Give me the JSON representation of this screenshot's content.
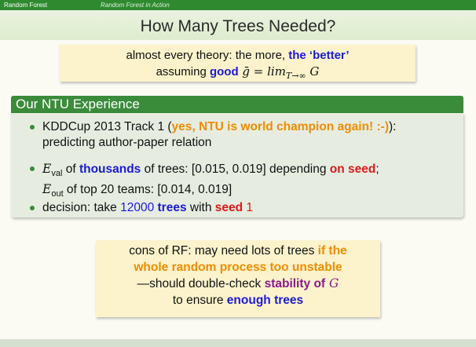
{
  "header": {
    "section": "Random Forest",
    "subsection": "Random Forest in Action"
  },
  "slide": {
    "title": "How Many Trees Needed?"
  },
  "intro_box": {
    "line1_prefix": "almost every theory: the more, ",
    "line1_emph": "the ‘better’",
    "line2_prefix": "assuming ",
    "line2_emph": "good",
    "line2_formula_a": " ḡ = lim",
    "line2_formula_sub": "T→∞",
    "line2_formula_b": " G"
  },
  "experience": {
    "heading": "Our NTU Experience",
    "items": [
      {
        "a": "KDDCup 2013 Track 1 (",
        "b": "yes, NTU is world champion again! :-)",
        "c": "):",
        "d": "predicting author-paper relation"
      },
      {
        "e_sym": "E",
        "e_sub": "val",
        "a": " of ",
        "b": "thousands",
        "c": " of trees: [0.015, 0.019] depending ",
        "d": "on seed",
        "f": ";",
        "e2_sym": "E",
        "e2_sub": "out",
        "g": " of top 20 teams: [0.014, 0.019]"
      },
      {
        "a": "decision: take ",
        "b": "12000",
        "c": " ",
        "d": "trees",
        "e": " with ",
        "f": "seed",
        "g": " ",
        "h": "1"
      }
    ]
  },
  "cons_box": {
    "l1_a": "cons of RF: may need lots of trees ",
    "l1_b": "if the",
    "l2": "whole random process too unstable",
    "l3_a": "—should double-check ",
    "l3_b": "stability of",
    "l3_c": " G",
    "l4_a": "to ensure ",
    "l4_b": "enough trees"
  },
  "colors": {
    "header_green": "#2f8a2f",
    "block_green": "#3a8b3a",
    "highlight_orange": "#f08c00",
    "highlight_blue": "#1a1ad6",
    "highlight_red": "#e01818",
    "highlight_purple": "#8a1a8a",
    "box_yellow": "#fcf3cc"
  }
}
